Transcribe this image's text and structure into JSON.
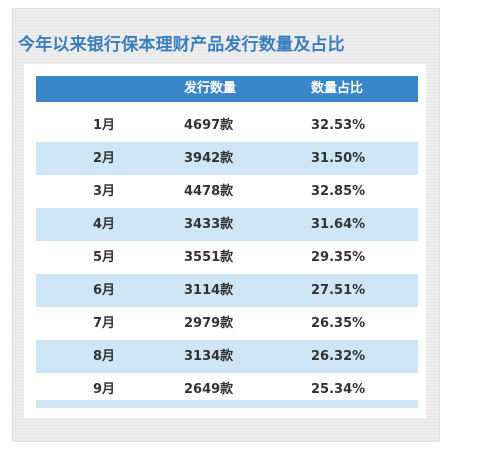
{
  "title": "今年以来银行保本理财产品发行数量及占比",
  "chart_data": {
    "type": "table",
    "columns": [
      "",
      "发行数量",
      "数量占比"
    ],
    "rows": [
      {
        "month": "1月",
        "count": "4697款",
        "share": "32.53%"
      },
      {
        "month": "2月",
        "count": "3942款",
        "share": "31.50%"
      },
      {
        "month": "3月",
        "count": "4478款",
        "share": "32.85%"
      },
      {
        "month": "4月",
        "count": "3433款",
        "share": "31.64%"
      },
      {
        "month": "5月",
        "count": "3551款",
        "share": "29.35%"
      },
      {
        "month": "6月",
        "count": "3114款",
        "share": "27.51%"
      },
      {
        "month": "7月",
        "count": "2979款",
        "share": "26.35%"
      },
      {
        "month": "8月",
        "count": "3134款",
        "share": "26.32%"
      },
      {
        "month": "9月",
        "count": "2649款",
        "share": "25.34%"
      }
    ]
  },
  "colors": {
    "title": "#3a7ec1",
    "header_bg": "#3a86c8",
    "stripe": "#cfe6f6",
    "panel_bg": "#eeeeee"
  }
}
